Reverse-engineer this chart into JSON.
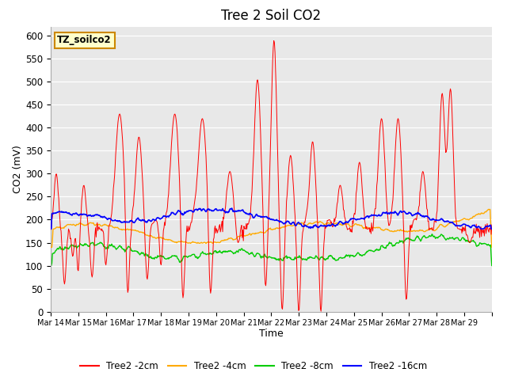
{
  "title": "Tree 2 Soil CO2",
  "xlabel": "Time",
  "ylabel": "CO2 (mV)",
  "ylim": [
    0,
    620
  ],
  "yticks": [
    0,
    50,
    100,
    150,
    200,
    250,
    300,
    350,
    400,
    450,
    500,
    550,
    600
  ],
  "background_color": "#e8e8e8",
  "fig_color": "#ffffff",
  "label_box_text": "TZ_soilco2",
  "label_box_facecolor": "#ffffcc",
  "label_box_edgecolor": "#cc8800",
  "series_colors": {
    "2cm": "#ff0000",
    "4cm": "#ffaa00",
    "8cm": "#00cc00",
    "16cm": "#0000ff"
  },
  "legend_labels": [
    "Tree2 -2cm",
    "Tree2 -4cm",
    "Tree2 -8cm",
    "Tree2 -16cm"
  ],
  "x_tick_labels": [
    "Mar 14",
    "Mar 15",
    "Mar 16",
    "Mar 17",
    "Mar 18",
    "Mar 19",
    "Mar 20",
    "Mar 21",
    "Mar 22",
    "Mar 23",
    "Mar 24",
    "Mar 25",
    "Mar 26",
    "Mar 27",
    "Mar 28",
    "Mar 29"
  ],
  "n_days": 16,
  "points_per_day": 48
}
